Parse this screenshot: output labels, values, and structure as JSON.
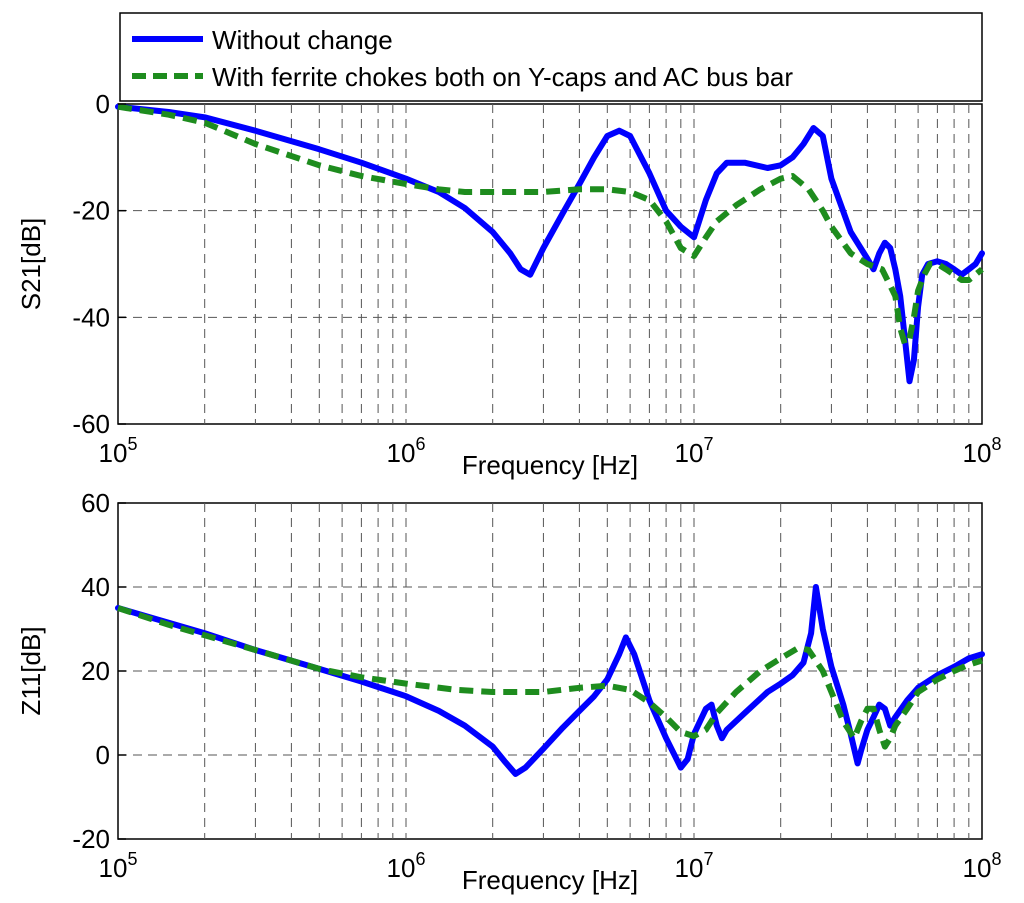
{
  "chart_data": [
    {
      "type": "line",
      "xscale": "log",
      "xlim": [
        100000,
        100000000
      ],
      "ylim": [
        -60,
        0
      ],
      "xlabel": "Frequency [Hz]",
      "ylabel": "S21[dB]",
      "grid": true,
      "legend": {
        "placement": "top",
        "entries": [
          "Without change",
          "With ferrite chokes both on Y-caps and AC bus bar"
        ]
      },
      "xticks": [
        {
          "base": "10",
          "exp": "5",
          "value": 100000
        },
        {
          "base": "10",
          "exp": "6",
          "value": 1000000
        },
        {
          "base": "10",
          "exp": "7",
          "value": 10000000
        },
        {
          "base": "10",
          "exp": "8",
          "value": 100000000
        }
      ],
      "yticks": [
        "0",
        "-20",
        "-40",
        "-60"
      ],
      "series": [
        {
          "name": "Without change",
          "color": "#0000ff",
          "style": "solid",
          "x": [
            100000,
            150000,
            200000,
            300000,
            500000,
            700000,
            1000000,
            1300000,
            1600000,
            2000000,
            2300000,
            2500000,
            2700000,
            3000000,
            3500000,
            4000000,
            4500000,
            5000000,
            5500000,
            6000000,
            7000000,
            8000000,
            9000000,
            10000000,
            11000000,
            12000000,
            13000000,
            15000000,
            18000000,
            20000000,
            22000000,
            24000000,
            26000000,
            28000000,
            30000000,
            35000000,
            40000000,
            42000000,
            44000000,
            46000000,
            48000000,
            50000000,
            52000000,
            54000000,
            56000000,
            58000000,
            60000000,
            62000000,
            65000000,
            70000000,
            75000000,
            80000000,
            85000000,
            90000000,
            95000000,
            100000000
          ],
          "y": [
            -0.5,
            -1.5,
            -2.5,
            -5,
            -8.5,
            -11,
            -14,
            -16.5,
            -19.5,
            -24,
            -28,
            -31,
            -32,
            -27,
            -20.5,
            -15,
            -10,
            -6,
            -5,
            -6,
            -13,
            -20,
            -23,
            -25,
            -18,
            -13,
            -11,
            -11,
            -12,
            -11.5,
            -10,
            -7.5,
            -4.5,
            -6,
            -14,
            -24,
            -29,
            -31,
            -28,
            -26,
            -27,
            -31,
            -36,
            -44,
            -52,
            -48,
            -38,
            -32,
            -30,
            -29.5,
            -30,
            -31,
            -32,
            -31,
            -30,
            -28
          ]
        },
        {
          "name": "With ferrite chokes both on Y-caps and AC bus bar",
          "color": "#1e8c1e",
          "style": "dashed",
          "x": [
            100000,
            150000,
            200000,
            300000,
            500000,
            700000,
            1000000,
            1300000,
            1600000,
            2000000,
            2500000,
            3000000,
            4000000,
            5000000,
            6000000,
            7000000,
            8000000,
            9000000,
            10000000,
            11000000,
            12000000,
            14000000,
            17000000,
            20000000,
            22000000,
            25000000,
            28000000,
            30000000,
            35000000,
            40000000,
            45000000,
            50000000,
            52000000,
            54000000,
            56000000,
            58000000,
            60000000,
            63000000,
            66000000,
            70000000,
            75000000,
            80000000,
            85000000,
            90000000,
            100000000
          ],
          "y": [
            -0.5,
            -2,
            -3.5,
            -7.5,
            -11.5,
            -13.5,
            -15,
            -16,
            -16.5,
            -16.5,
            -16.5,
            -16.5,
            -16,
            -16,
            -16.5,
            -18,
            -22,
            -27,
            -28.5,
            -25,
            -22,
            -19,
            -16,
            -14,
            -13.5,
            -16,
            -20,
            -23,
            -28,
            -30,
            -31,
            -36,
            -42,
            -45,
            -44,
            -40,
            -35,
            -32,
            -30,
            -30,
            -31,
            -32,
            -33,
            -33,
            -31
          ]
        }
      ]
    },
    {
      "type": "line",
      "xscale": "log",
      "xlim": [
        100000,
        100000000
      ],
      "ylim": [
        -20,
        60
      ],
      "xlabel": "Frequency [Hz]",
      "ylabel": "Z11[dB]",
      "grid": true,
      "xticks": [
        {
          "base": "10",
          "exp": "5",
          "value": 100000
        },
        {
          "base": "10",
          "exp": "6",
          "value": 1000000
        },
        {
          "base": "10",
          "exp": "7",
          "value": 10000000
        },
        {
          "base": "10",
          "exp": "8",
          "value": 100000000
        }
      ],
      "yticks": [
        "60",
        "40",
        "20",
        "0",
        "-20"
      ],
      "series": [
        {
          "name": "Without change",
          "color": "#0000ff",
          "style": "solid",
          "x": [
            100000,
            150000,
            200000,
            300000,
            500000,
            700000,
            1000000,
            1300000,
            1600000,
            2000000,
            2200000,
            2400000,
            2600000,
            3000000,
            3500000,
            4000000,
            4500000,
            5000000,
            5500000,
            5800000,
            6200000,
            7000000,
            8000000,
            9000000,
            9500000,
            10000000,
            11000000,
            11500000,
            12000000,
            12500000,
            13000000,
            15000000,
            18000000,
            20000000,
            22000000,
            24000000,
            25500000,
            26500000,
            28000000,
            30000000,
            33000000,
            35000000,
            37000000,
            38000000,
            40000000,
            42000000,
            44000000,
            46000000,
            48000000,
            50000000,
            55000000,
            60000000,
            70000000,
            80000000,
            90000000,
            100000000
          ],
          "y": [
            35,
            31.5,
            29,
            25,
            20.5,
            17.5,
            14,
            10.5,
            7,
            2,
            -1.5,
            -4.5,
            -3,
            1.5,
            6.5,
            10.5,
            14,
            18,
            24,
            28,
            24,
            13,
            4,
            -3,
            -1,
            5,
            11,
            12,
            7,
            4,
            6,
            10,
            15,
            17,
            19,
            22,
            29,
            40,
            30,
            21,
            12,
            5,
            -2,
            1,
            6,
            9,
            12,
            11,
            7,
            9,
            13,
            16,
            19,
            21,
            23,
            24
          ]
        },
        {
          "name": "With ferrite chokes both on Y-caps and AC bus bar",
          "color": "#1e8c1e",
          "style": "dashed",
          "x": [
            100000,
            150000,
            200000,
            300000,
            500000,
            700000,
            1000000,
            1500000,
            2000000,
            3000000,
            4000000,
            5000000,
            6000000,
            7000000,
            8000000,
            9000000,
            10000000,
            11000000,
            12000000,
            14000000,
            17000000,
            20000000,
            23000000,
            25000000,
            28000000,
            30000000,
            33000000,
            36000000,
            38000000,
            40000000,
            42000000,
            44000000,
            46000000,
            48000000,
            50000000,
            55000000,
            60000000,
            70000000,
            80000000,
            90000000,
            100000000
          ],
          "y": [
            35,
            31,
            28.5,
            25,
            20.5,
            18.5,
            17,
            15.5,
            15,
            15,
            16,
            16.5,
            15.5,
            12.5,
            9,
            5.5,
            4.5,
            6,
            10,
            15,
            20,
            23,
            25.5,
            25,
            20,
            15,
            8,
            4,
            8,
            11,
            11,
            6,
            2,
            4,
            7,
            11,
            15,
            18,
            20,
            21.5,
            22.5
          ]
        }
      ]
    }
  ]
}
